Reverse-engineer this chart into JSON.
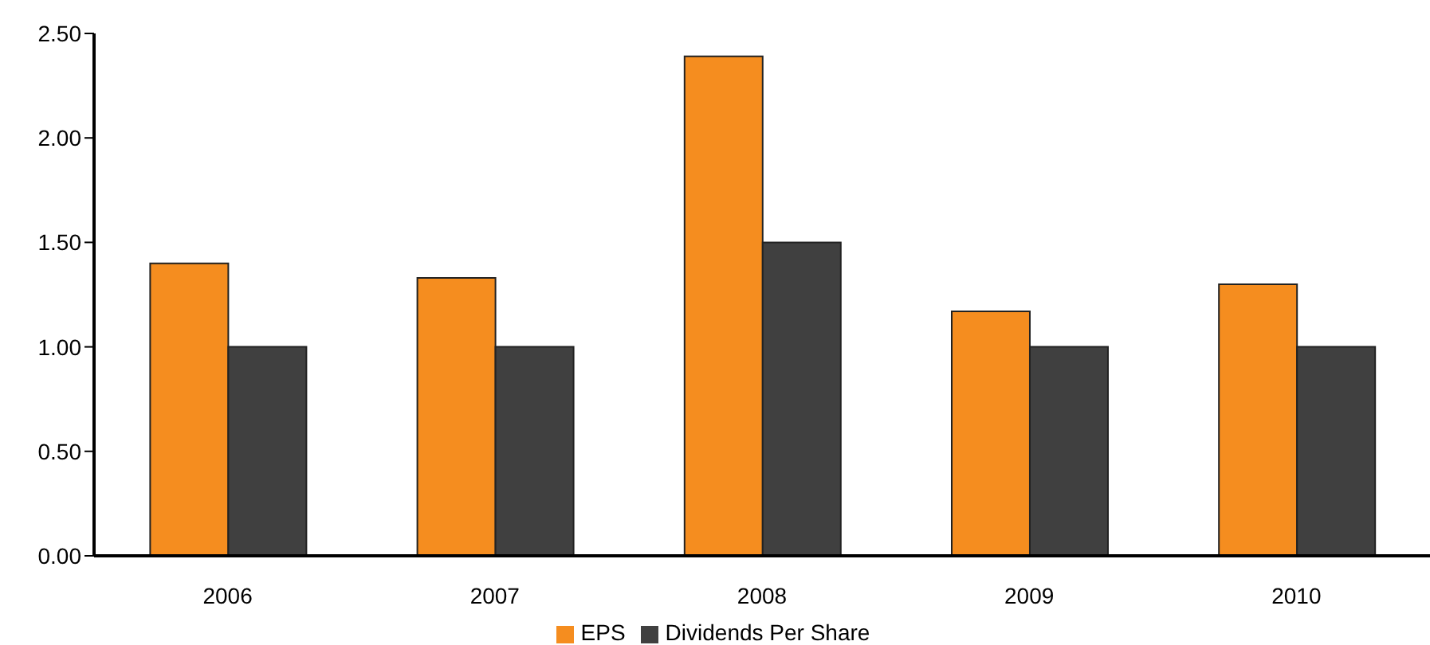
{
  "chart_data": {
    "type": "bar",
    "categories": [
      "2006",
      "2007",
      "2008",
      "2009",
      "2010"
    ],
    "series": [
      {
        "name": "EPS",
        "color": "#f58d1f",
        "values": [
          1.4,
          1.33,
          2.39,
          1.17,
          1.3
        ]
      },
      {
        "name": "Dividends Per Share",
        "color": "#404040",
        "values": [
          1.0,
          1.0,
          1.5,
          1.0,
          1.0
        ]
      }
    ],
    "ylim": [
      0,
      2.5
    ],
    "yticks": [
      {
        "value": 0,
        "label": "0.00"
      },
      {
        "value": 0.5,
        "label": "0.50"
      },
      {
        "value": 1,
        "label": "1.00"
      },
      {
        "value": 1.5,
        "label": "1.50"
      },
      {
        "value": 2,
        "label": "2.00"
      },
      {
        "value": 2.5,
        "label": "2.50"
      }
    ],
    "grid": false,
    "legend": "bottom"
  }
}
